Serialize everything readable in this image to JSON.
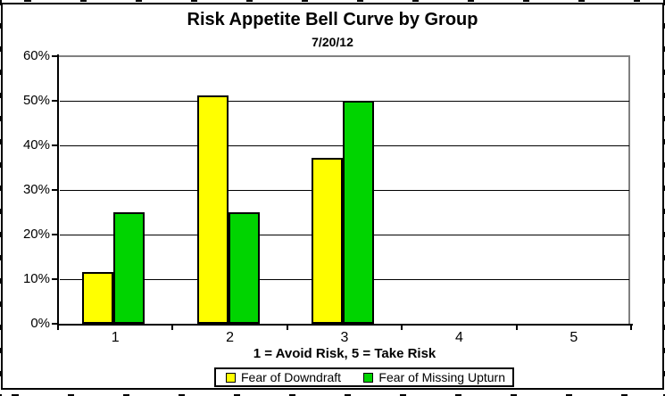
{
  "chart_data": {
    "type": "bar",
    "title": "Risk Appetite Bell Curve by Group",
    "subtitle": "7/20/12",
    "xlabel": "1 = Avoid Risk, 5 = Take Risk",
    "ylabel": "",
    "categories": [
      "1",
      "2",
      "3",
      "4",
      "5"
    ],
    "series": [
      {
        "name": "Fear of Downdraft",
        "color": "#FFFF00",
        "values": [
          11.6,
          51.2,
          37.2,
          0,
          0
        ]
      },
      {
        "name": "Fear of Missing Upturn",
        "color": "#00D400",
        "values": [
          25,
          25,
          50,
          0,
          0
        ]
      }
    ],
    "ylim": [
      0,
      60
    ],
    "y_tick_step": 10,
    "y_tick_labels": [
      "0%",
      "10%",
      "20%",
      "30%",
      "40%",
      "50%",
      "60%"
    ],
    "grid": true,
    "legend_position": "bottom",
    "colors": {
      "axis": "#000000",
      "gridline": "#000000",
      "plot_border": "#808080",
      "bar_border": "#000000",
      "text": "#000000",
      "background": "#FFFFFF"
    }
  }
}
